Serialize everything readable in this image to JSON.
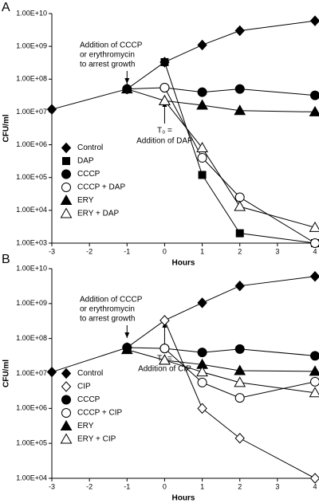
{
  "chart_data": [
    {
      "type": "line",
      "panel_label": "A",
      "log_y": true,
      "legend": "lower left",
      "xlabel": "Hours",
      "ylabel": "CFU/ml",
      "x": [
        -3,
        -1,
        0,
        1,
        2,
        4
      ],
      "xlim": [
        -3,
        4
      ],
      "xticks": [
        -3,
        -2,
        -1,
        0,
        1,
        2,
        3,
        4
      ],
      "ylim": [
        1000,
        10000000000
      ],
      "yticks": [
        {
          "value": 1000,
          "label": "1.00E+03"
        },
        {
          "value": 10000,
          "label": "1.00E+04"
        },
        {
          "value": 100000,
          "label": "1.00E+05"
        },
        {
          "value": 1000000,
          "label": "1.00E+06"
        },
        {
          "value": 10000000,
          "label": "1.00E+07"
        },
        {
          "value": 100000000,
          "label": "1.00E+08"
        },
        {
          "value": 1000000000,
          "label": "1.00E+09"
        },
        {
          "value": 10000000000,
          "label": "1.00E+10"
        }
      ],
      "annotations": [
        {
          "lines": [
            "Addition of CCCP",
            "or erythromycin",
            "to arrest growth"
          ]
        },
        {
          "lines": [
            "T₀ =",
            "Addition of DAP"
          ]
        }
      ],
      "series": [
        {
          "name": "Control",
          "color": "#000000",
          "marker": "diamond",
          "filled": true,
          "values": [
            12000000,
            50000000,
            330000000,
            1100000000,
            3000000000,
            6000000000
          ]
        },
        {
          "name": "DAP",
          "color": "#000000",
          "marker": "square",
          "filled": true,
          "values": [
            null,
            null,
            330000000,
            120000,
            2000,
            1000
          ]
        },
        {
          "name": "CCCP",
          "color": "#000000",
          "marker": "circle",
          "filled": true,
          "values": [
            null,
            50000000,
            55000000,
            40000000,
            50000000,
            32000000
          ]
        },
        {
          "name": "CCCP + DAP",
          "color": "#000000",
          "marker": "circle",
          "filled": false,
          "values": [
            null,
            null,
            55000000,
            400000,
            25000,
            1000
          ]
        },
        {
          "name": "ERY",
          "color": "#000000",
          "marker": "triangle",
          "filled": true,
          "values": [
            null,
            50000000,
            22000000,
            16000000,
            11000000,
            10000000
          ]
        },
        {
          "name": "ERY + DAP",
          "color": "#000000",
          "marker": "triangle",
          "filled": false,
          "values": [
            null,
            null,
            22000000,
            800000,
            13000,
            3000
          ]
        }
      ]
    },
    {
      "type": "line",
      "panel_label": "B",
      "log_y": true,
      "legend": "lower left",
      "xlabel": "Hours",
      "ylabel": "CFU/ml",
      "x": [
        -3,
        -1,
        0,
        1,
        2,
        4
      ],
      "xlim": [
        -3,
        4
      ],
      "xticks": [
        -3,
        -2,
        -1,
        0,
        1,
        2,
        3,
        4
      ],
      "ylim": [
        10000,
        10000000000
      ],
      "yticks": [
        {
          "value": 10000,
          "label": "1.00E+04"
        },
        {
          "value": 100000,
          "label": "1.00E+05"
        },
        {
          "value": 1000000,
          "label": "1.00E+06"
        },
        {
          "value": 10000000,
          "label": "1.00E+07"
        },
        {
          "value": 100000000,
          "label": "1.00E+08"
        },
        {
          "value": 1000000000,
          "label": "1.00E+09"
        },
        {
          "value": 10000000000,
          "label": "1.00E+10"
        }
      ],
      "annotations": [
        {
          "lines": [
            "Addition of CCCP",
            "or erythromycin",
            "to arrest growth"
          ]
        },
        {
          "lines": [
            "T₀ =",
            "Addition of CIP"
          ]
        }
      ],
      "series": [
        {
          "name": "Control",
          "color": "#000000",
          "marker": "diamond",
          "filled": true,
          "values": [
            11000000,
            55000000,
            330000000,
            1050000000,
            3200000000,
            6000000000
          ]
        },
        {
          "name": "CIP",
          "color": "#000000",
          "marker": "diamond",
          "filled": false,
          "values": [
            null,
            null,
            330000000,
            1000000,
            140000,
            10000
          ]
        },
        {
          "name": "CCCP",
          "color": "#000000",
          "marker": "circle",
          "filled": true,
          "values": [
            null,
            55000000,
            52000000,
            40000000,
            50000000,
            32000000
          ]
        },
        {
          "name": "CCCP + CIP",
          "color": "#000000",
          "marker": "circle",
          "filled": false,
          "values": [
            null,
            null,
            52000000,
            5500000,
            2000000,
            5800000
          ]
        },
        {
          "name": "ERY",
          "color": "#000000",
          "marker": "triangle",
          "filled": true,
          "values": [
            null,
            48000000,
            24000000,
            18000000,
            12000000,
            11500000
          ]
        },
        {
          "name": "ERY + CIP",
          "color": "#000000",
          "marker": "triangle",
          "filled": false,
          "values": [
            null,
            null,
            24000000,
            11000000,
            5500000,
            2800000
          ]
        }
      ]
    }
  ]
}
